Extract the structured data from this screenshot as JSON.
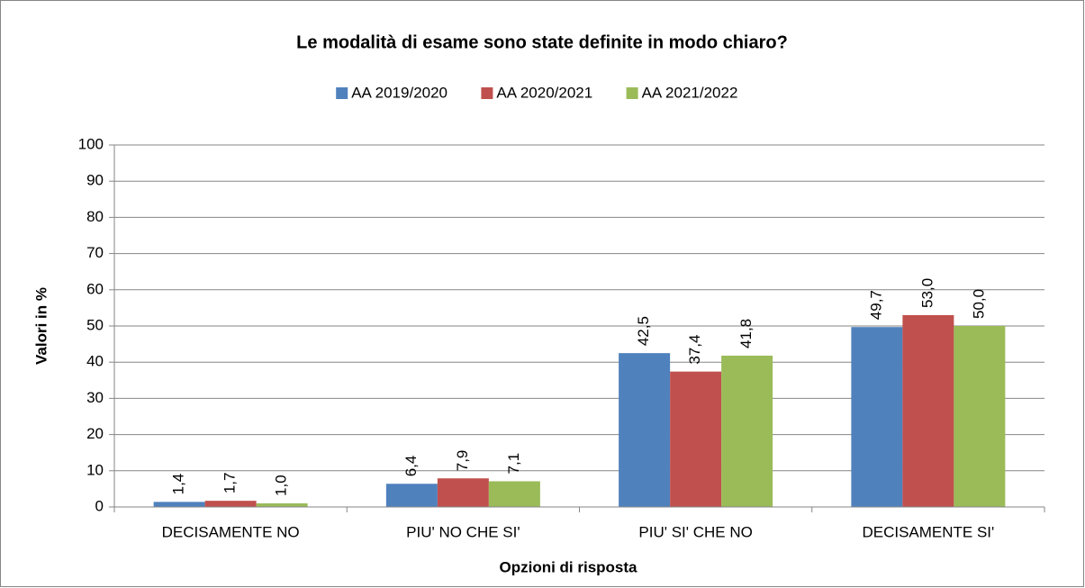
{
  "chart_data": {
    "type": "bar",
    "title": "Le modalità di esame sono state definite in modo chiaro?",
    "x_label": "Opzioni di risposta",
    "y_label": "Valori in %",
    "categories": [
      "DECISAMENTE NO",
      "PIU' NO CHE SI'",
      "PIU' SI' CHE NO",
      "DECISAMENTE SI'"
    ],
    "series": [
      {
        "name": "AA 2019/2020",
        "color": "#4f81bd",
        "values": [
          1.4,
          6.4,
          42.5,
          49.7
        ],
        "value_labels": [
          "1,4",
          "6,4",
          "42,5",
          "49,7"
        ]
      },
      {
        "name": "AA 2020/2021",
        "color": "#c0504d",
        "values": [
          1.7,
          7.9,
          37.4,
          53.0
        ],
        "value_labels": [
          "1,7",
          "7,9",
          "37,4",
          "53,0"
        ]
      },
      {
        "name": "AA 2021/2022",
        "color": "#9bbb59",
        "values": [
          1.0,
          7.1,
          41.8,
          50.0
        ],
        "value_labels": [
          "1,0",
          "7,1",
          "41,8",
          "50,0"
        ]
      }
    ],
    "ylim": [
      0,
      100
    ],
    "yticks": [
      0,
      10,
      20,
      30,
      40,
      50,
      60,
      70,
      80,
      90,
      100
    ],
    "grid": true,
    "legend": "top"
  }
}
